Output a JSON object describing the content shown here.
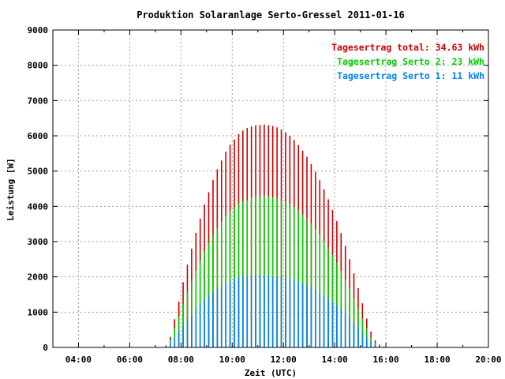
{
  "chart_data": {
    "type": "bar",
    "title": "Produktion Solaranlage Serto-Gressel 2011-01-16",
    "xlabel": "Zeit (UTC)",
    "ylabel": "Leistung [W]",
    "xlim": [
      3,
      20
    ],
    "ylim": [
      0,
      9000
    ],
    "x_ticks": [
      "04:00",
      "06:00",
      "08:00",
      "10:00",
      "12:00",
      "14:00",
      "16:00",
      "18:00",
      "20:00"
    ],
    "y_ticks": [
      "0",
      "1000",
      "2000",
      "3000",
      "4000",
      "5000",
      "6000",
      "7000",
      "8000",
      "9000"
    ],
    "grid": true,
    "legend_position": "top-right",
    "legend": [
      {
        "text": "Tagesertrag total: 34.63 kWh",
        "color": "#cc0000"
      },
      {
        "text": "Tagesertrag Serto 2: 23 kWh",
        "color": "#00cc00"
      },
      {
        "text": "Tagesertrag Serto 1: 11 kWh",
        "color": "#0080ff"
      }
    ],
    "series": [
      {
        "name": "Tagesertrag total: 34.63 kWh",
        "color": "#cc0000",
        "x": [
          "07:25",
          "07:35",
          "07:45",
          "07:55",
          "08:05",
          "08:15",
          "08:25",
          "08:35",
          "08:45",
          "08:55",
          "09:05",
          "09:15",
          "09:25",
          "09:35",
          "09:45",
          "09:55",
          "10:05",
          "10:15",
          "10:25",
          "10:35",
          "10:45",
          "10:55",
          "11:05",
          "11:15",
          "11:25",
          "11:35",
          "11:45",
          "11:55",
          "12:05",
          "12:15",
          "12:25",
          "12:35",
          "12:45",
          "12:55",
          "13:05",
          "13:15",
          "13:25",
          "13:35",
          "13:45",
          "13:55",
          "14:05",
          "14:15",
          "14:25",
          "14:35",
          "14:45",
          "14:55",
          "15:05",
          "15:15",
          "15:25",
          "15:35",
          "15:45",
          "15:55"
        ],
        "values": [
          60,
          300,
          800,
          1300,
          1850,
          2350,
          2800,
          3250,
          3650,
          4050,
          4400,
          4750,
          5050,
          5300,
          5550,
          5750,
          5900,
          6050,
          6150,
          6220,
          6270,
          6300,
          6310,
          6320,
          6300,
          6280,
          6240,
          6180,
          6100,
          6000,
          5880,
          5740,
          5580,
          5400,
          5200,
          4980,
          4740,
          4480,
          4200,
          3900,
          3580,
          3240,
          2880,
          2500,
          2100,
          1680,
          1250,
          820,
          450,
          200,
          80,
          30
        ]
      },
      {
        "name": "Tagesertrag Serto 2: 23 kWh",
        "color": "#00cc00",
        "x": [
          "07:25",
          "07:35",
          "07:45",
          "07:55",
          "08:05",
          "08:15",
          "08:25",
          "08:35",
          "08:45",
          "08:55",
          "09:05",
          "09:15",
          "09:25",
          "09:35",
          "09:45",
          "09:55",
          "10:05",
          "10:15",
          "10:25",
          "10:35",
          "10:45",
          "10:55",
          "11:05",
          "11:15",
          "11:25",
          "11:35",
          "11:45",
          "11:55",
          "12:05",
          "12:15",
          "12:25",
          "12:35",
          "12:45",
          "12:55",
          "13:05",
          "13:15",
          "13:25",
          "13:35",
          "13:45",
          "13:55",
          "14:05",
          "14:15",
          "14:25",
          "14:35",
          "14:45",
          "14:55",
          "15:05",
          "15:15",
          "15:25",
          "15:35",
          "15:45",
          "15:55"
        ],
        "values": [
          40,
          200,
          530,
          880,
          1240,
          1580,
          1880,
          2180,
          2450,
          2720,
          2960,
          3190,
          3390,
          3560,
          3730,
          3860,
          3970,
          4070,
          4140,
          4190,
          4230,
          4260,
          4280,
          4290,
          4280,
          4260,
          4230,
          4190,
          4130,
          4060,
          3980,
          3880,
          3770,
          3650,
          3510,
          3360,
          3200,
          3020,
          2830,
          2620,
          2400,
          2170,
          1920,
          1660,
          1390,
          1110,
          820,
          540,
          290,
          130,
          50,
          20
        ]
      },
      {
        "name": "Tagesertrag Serto 1: 11 kWh",
        "color": "#0080ff",
        "x": [
          "07:25",
          "07:35",
          "07:45",
          "07:55",
          "08:05",
          "08:15",
          "08:25",
          "08:35",
          "08:45",
          "08:55",
          "09:05",
          "09:15",
          "09:25",
          "09:35",
          "09:45",
          "09:55",
          "10:05",
          "10:15",
          "10:25",
          "10:35",
          "10:45",
          "10:55",
          "11:05",
          "11:15",
          "11:25",
          "11:35",
          "11:45",
          "11:55",
          "12:05",
          "12:15",
          "12:25",
          "12:35",
          "12:45",
          "12:55",
          "13:05",
          "13:15",
          "13:25",
          "13:35",
          "13:45",
          "13:55",
          "14:05",
          "14:15",
          "14:25",
          "14:35",
          "14:45",
          "14:55",
          "15:05",
          "15:15",
          "15:25",
          "15:35",
          "15:45",
          "15:55"
        ],
        "values": [
          20,
          100,
          270,
          430,
          610,
          780,
          930,
          1080,
          1210,
          1340,
          1460,
          1570,
          1670,
          1750,
          1830,
          1890,
          1940,
          1980,
          2010,
          2030,
          2040,
          2040,
          2030,
          2030,
          2020,
          2010,
          2000,
          1990,
          1970,
          1940,
          1900,
          1860,
          1810,
          1750,
          1690,
          1620,
          1540,
          1460,
          1370,
          1280,
          1180,
          1070,
          960,
          840,
          710,
          570,
          430,
          280,
          160,
          70,
          30,
          10
        ]
      }
    ]
  }
}
